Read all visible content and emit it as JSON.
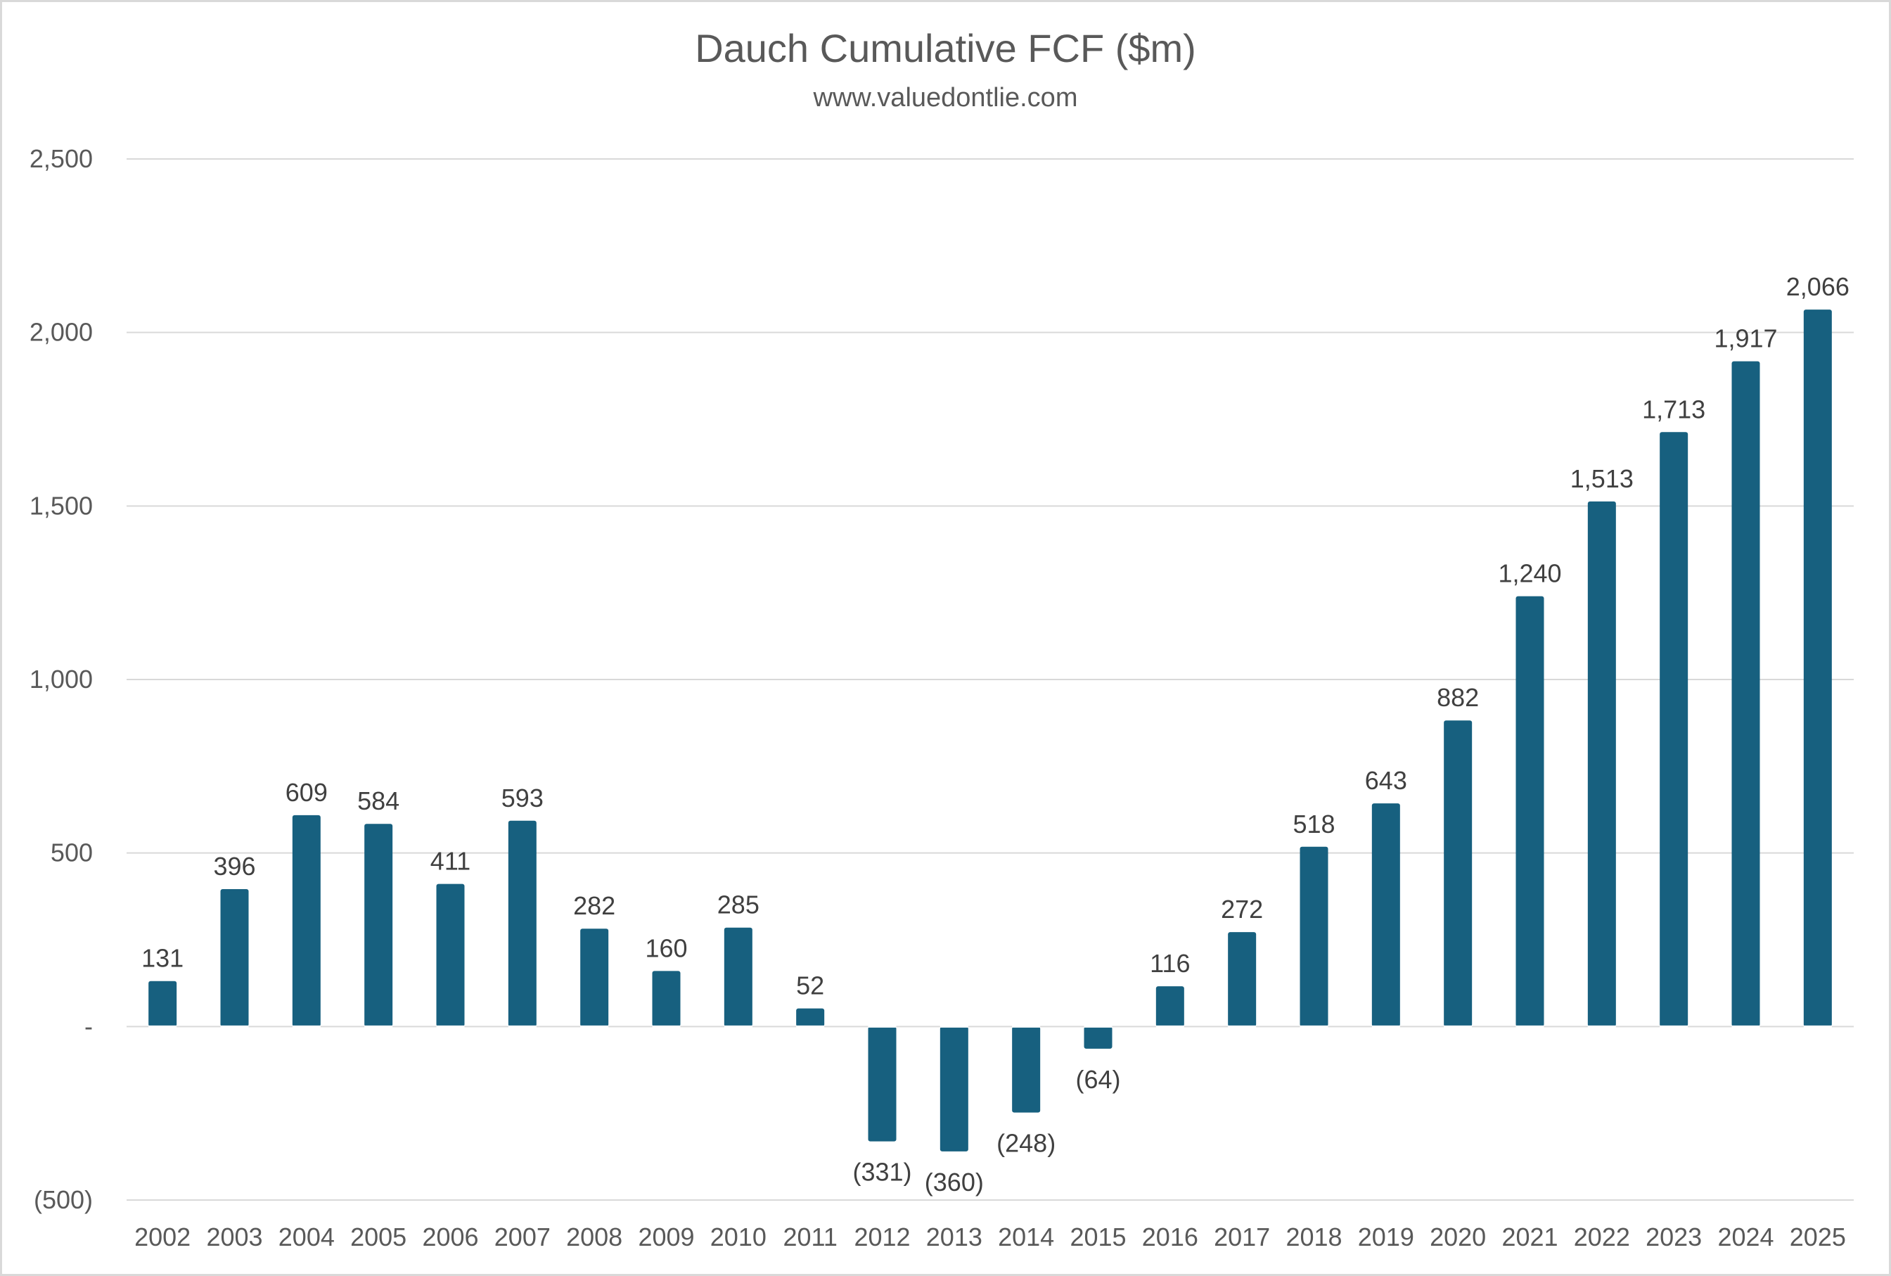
{
  "chart_data": {
    "type": "bar",
    "title": "Dauch Cumulative FCF ($m)",
    "subtitle": "www.valuedontlie.com",
    "xlabel": "",
    "ylabel": "",
    "categories": [
      "2002",
      "2003",
      "2004",
      "2005",
      "2006",
      "2007",
      "2008",
      "2009",
      "2010",
      "2011",
      "2012",
      "2013",
      "2014",
      "2015",
      "2016",
      "2017",
      "2018",
      "2019",
      "2020",
      "2021",
      "2022",
      "2023",
      "2024",
      "2025"
    ],
    "values": [
      131,
      396,
      609,
      584,
      411,
      593,
      282,
      160,
      285,
      52,
      -331,
      -360,
      -248,
      -64,
      116,
      272,
      518,
      643,
      882,
      1240,
      1513,
      1713,
      1917,
      2066
    ],
    "data_labels": [
      "131",
      "396",
      "609",
      "584",
      "411",
      "593",
      "282",
      "160",
      "285",
      "52",
      "(331)",
      "(360)",
      "(248)",
      "(64)",
      "116",
      "272",
      "518",
      "643",
      "882",
      "1,240",
      "1,513",
      "1,713",
      "1,917",
      "2,066"
    ],
    "y_ticks": [
      -500,
      0,
      500,
      1000,
      1500,
      2000,
      2500
    ],
    "y_tick_labels": [
      "(500)",
      "-",
      "500",
      "1,000",
      "1,500",
      "2,000",
      "2,500"
    ],
    "ylim": [
      -500,
      2500
    ],
    "grid": true,
    "legend": "none",
    "bar_color": "#17607f",
    "grid_color": "#d9d9d9"
  }
}
